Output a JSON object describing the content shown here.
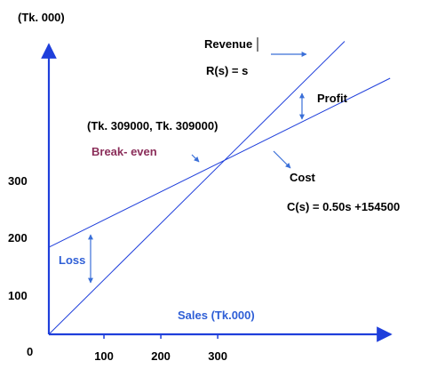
{
  "chart_data": {
    "type": "line",
    "title": "",
    "xlabel": "Sales (Tk.000)",
    "ylabel": "(Tk. 000)",
    "origin_label": "0",
    "x_ticks": [
      "100",
      "200",
      "300"
    ],
    "y_ticks": [
      "100",
      "200",
      "300"
    ],
    "xlim": [
      0,
      600
    ],
    "ylim": [
      0,
      540
    ],
    "series": [
      {
        "name": "Revenue",
        "formula": "R(s) = s",
        "x": [
          0,
          520
        ],
        "y": [
          0,
          520
        ]
      },
      {
        "name": "Cost",
        "formula": "C(s) = 0.50s +154500",
        "x": [
          0,
          600
        ],
        "y": [
          154.5,
          454.5
        ]
      }
    ],
    "break_even": {
      "label": "Break- even",
      "coordinates": "(Tk. 309000, Tk. 309000)",
      "x": 309,
      "y": 309
    },
    "annotations": {
      "profit": "Profit",
      "loss": "Loss"
    },
    "colors": {
      "axis": "#1f3fdb",
      "line": "#1f3fdb",
      "arrow": "#3a6fd8",
      "break_even_text": "#8b2e5a",
      "blue_text": "#2f5fd6",
      "text": "#000000"
    }
  }
}
